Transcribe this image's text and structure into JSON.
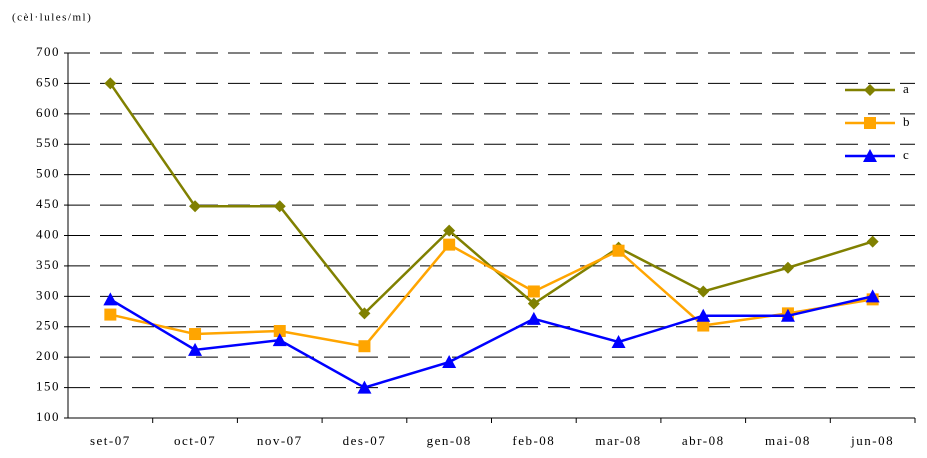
{
  "chart_data": {
    "type": "line",
    "y_label": "(cèl·lules/ml)",
    "categories": [
      "set-07",
      "oct-07",
      "nov-07",
      "des-07",
      "gen-08",
      "feb-08",
      "mar-08",
      "abr-08",
      "mai-08",
      "jun-08"
    ],
    "series": [
      {
        "name": "a",
        "color": "#808000",
        "marker": "diamond",
        "values": [
          650,
          448,
          448,
          272,
          408,
          288,
          380,
          308,
          347,
          390
        ]
      },
      {
        "name": "b",
        "color": "#FFA500",
        "marker": "square",
        "values": [
          270,
          238,
          243,
          218,
          385,
          308,
          375,
          252,
          272,
          295
        ]
      },
      {
        "name": "c",
        "color": "#0000FF",
        "marker": "triangle",
        "values": [
          295,
          212,
          228,
          150,
          192,
          263,
          225,
          268,
          268,
          300
        ]
      }
    ],
    "ylim": [
      100,
      700
    ],
    "yticks": [
      100,
      150,
      200,
      250,
      300,
      350,
      400,
      450,
      500,
      550,
      600,
      650,
      700
    ],
    "grid": true,
    "legend": "upper right"
  }
}
